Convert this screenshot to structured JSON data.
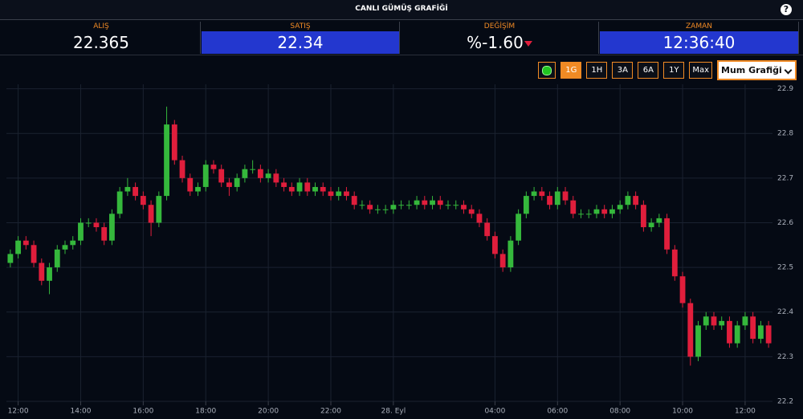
{
  "header": {
    "title": "CANLI GÜMÜŞ GRAFİĞİ",
    "help": "?"
  },
  "quotes": [
    {
      "label": "ALIŞ",
      "value": "22.365"
    },
    {
      "label": "SATIŞ",
      "value": "22.34"
    },
    {
      "label": "DEĞİŞİM",
      "value": "%-1.60"
    },
    {
      "label": "ZAMAN",
      "value": "12:36:40"
    }
  ],
  "controls": {
    "buttons": [
      "1G",
      "1H",
      "3A",
      "6A",
      "1Y",
      "Max"
    ],
    "active": "1G",
    "chart_select": "Mum Grafiği"
  },
  "chart_data": {
    "type": "candlestick",
    "up_color": "#35b83c",
    "down_color": "#e01e3c",
    "grid": true,
    "ylim": [
      22.2,
      22.91
    ],
    "yticks": [
      22.2,
      22.3,
      22.4,
      22.5,
      22.6,
      22.7,
      22.8,
      22.9
    ],
    "xticks": [
      {
        "value": 1,
        "label": "12:00"
      },
      {
        "value": 9,
        "label": "14:00"
      },
      {
        "value": 17,
        "label": "16:00"
      },
      {
        "value": 25,
        "label": "18:00"
      },
      {
        "value": 33,
        "label": "20:00"
      },
      {
        "value": 41,
        "label": "22:00"
      },
      {
        "value": 49,
        "label": "28. Eyl"
      },
      {
        "value": 62,
        "label": "04:00"
      },
      {
        "value": 70,
        "label": "06:00"
      },
      {
        "value": 78,
        "label": "08:00"
      },
      {
        "value": 86,
        "label": "10:00"
      },
      {
        "value": 94,
        "label": "12:00"
      }
    ],
    "open": [
      22.51,
      22.53,
      22.56,
      22.55,
      22.51,
      22.47,
      22.5,
      22.54,
      22.55,
      22.56,
      22.6,
      22.6,
      22.59,
      22.56,
      22.62,
      22.67,
      22.68,
      22.66,
      22.64,
      22.6,
      22.66,
      22.82,
      22.74,
      22.7,
      22.67,
      22.68,
      22.73,
      22.72,
      22.69,
      22.68,
      22.7,
      22.72,
      22.72,
      22.7,
      22.71,
      22.69,
      22.68,
      22.67,
      22.69,
      22.67,
      22.68,
      22.67,
      22.66,
      22.67,
      22.66,
      22.64,
      22.64,
      22.63,
      22.63,
      22.63,
      22.64,
      22.64,
      22.64,
      22.65,
      22.64,
      22.65,
      22.64,
      22.64,
      22.64,
      22.63,
      22.62,
      22.6,
      22.57,
      22.53,
      22.5,
      22.56,
      22.62,
      22.66,
      22.67,
      22.66,
      22.64,
      22.67,
      22.65,
      22.62,
      22.62,
      22.62,
      22.63,
      22.62,
      22.63,
      22.64,
      22.66,
      22.64,
      22.59,
      22.6,
      22.61,
      22.54,
      22.48,
      22.42,
      22.3,
      22.37,
      22.39,
      22.37,
      22.38,
      22.33,
      22.37,
      22.39,
      22.34,
      22.37
    ],
    "high": [
      22.54,
      22.57,
      22.57,
      22.56,
      22.52,
      22.51,
      22.55,
      22.56,
      22.57,
      22.61,
      22.61,
      22.61,
      22.6,
      22.63,
      22.68,
      22.7,
      22.69,
      22.67,
      22.65,
      22.67,
      22.86,
      22.83,
      22.75,
      22.71,
      22.69,
      22.74,
      22.74,
      22.73,
      22.7,
      22.71,
      22.73,
      22.74,
      22.73,
      22.72,
      22.72,
      22.7,
      22.69,
      22.7,
      22.7,
      22.69,
      22.69,
      22.68,
      22.68,
      22.68,
      22.67,
      22.65,
      22.65,
      22.64,
      22.64,
      22.65,
      22.65,
      22.65,
      22.66,
      22.66,
      22.66,
      22.66,
      22.65,
      22.65,
      22.65,
      22.64,
      22.63,
      22.61,
      22.58,
      22.54,
      22.57,
      22.63,
      22.67,
      22.68,
      22.68,
      22.67,
      22.68,
      22.68,
      22.66,
      22.63,
      22.63,
      22.64,
      22.64,
      22.64,
      22.65,
      22.67,
      22.67,
      22.65,
      22.61,
      22.62,
      22.62,
      22.55,
      22.49,
      22.43,
      22.38,
      22.4,
      22.4,
      22.39,
      22.39,
      22.38,
      22.4,
      22.4,
      22.38,
      22.38
    ],
    "low": [
      22.5,
      22.52,
      22.54,
      22.5,
      22.46,
      22.44,
      22.49,
      22.53,
      22.54,
      22.55,
      22.59,
      22.58,
      22.55,
      22.55,
      22.61,
      22.66,
      22.65,
      22.63,
      22.57,
      22.59,
      22.65,
      22.73,
      22.69,
      22.66,
      22.66,
      22.67,
      22.71,
      22.68,
      22.66,
      22.67,
      22.69,
      22.71,
      22.69,
      22.69,
      22.68,
      22.67,
      22.66,
      22.66,
      22.66,
      22.66,
      22.66,
      22.65,
      22.65,
      22.65,
      22.63,
      22.63,
      22.62,
      22.62,
      22.62,
      22.62,
      22.63,
      22.63,
      22.63,
      22.63,
      22.63,
      22.63,
      22.63,
      22.63,
      22.62,
      22.61,
      22.59,
      22.56,
      22.52,
      22.49,
      22.49,
      22.55,
      22.61,
      22.65,
      22.65,
      22.63,
      22.63,
      22.64,
      22.61,
      22.61,
      22.61,
      22.61,
      22.61,
      22.61,
      22.62,
      22.63,
      22.63,
      22.58,
      22.58,
      22.59,
      22.53,
      22.47,
      22.41,
      22.28,
      22.29,
      22.36,
      22.36,
      22.36,
      22.32,
      22.32,
      22.36,
      22.33,
      22.33,
      22.32
    ],
    "close": [
      22.53,
      22.56,
      22.55,
      22.51,
      22.47,
      22.5,
      22.54,
      22.55,
      22.56,
      22.6,
      22.6,
      22.59,
      22.56,
      22.62,
      22.67,
      22.68,
      22.66,
      22.64,
      22.6,
      22.66,
      22.82,
      22.74,
      22.7,
      22.67,
      22.68,
      22.73,
      22.72,
      22.69,
      22.68,
      22.7,
      22.72,
      22.72,
      22.7,
      22.71,
      22.69,
      22.68,
      22.67,
      22.69,
      22.67,
      22.68,
      22.67,
      22.66,
      22.67,
      22.66,
      22.64,
      22.64,
      22.63,
      22.63,
      22.63,
      22.64,
      22.64,
      22.64,
      22.65,
      22.64,
      22.65,
      22.64,
      22.64,
      22.64,
      22.63,
      22.62,
      22.6,
      22.57,
      22.53,
      22.5,
      22.56,
      22.62,
      22.66,
      22.67,
      22.66,
      22.64,
      22.67,
      22.65,
      22.62,
      22.62,
      22.62,
      22.63,
      22.62,
      22.63,
      22.64,
      22.66,
      22.64,
      22.59,
      22.6,
      22.61,
      22.54,
      22.48,
      22.42,
      22.3,
      22.37,
      22.39,
      22.37,
      22.38,
      22.33,
      22.37,
      22.39,
      22.34,
      22.37,
      22.33
    ]
  }
}
